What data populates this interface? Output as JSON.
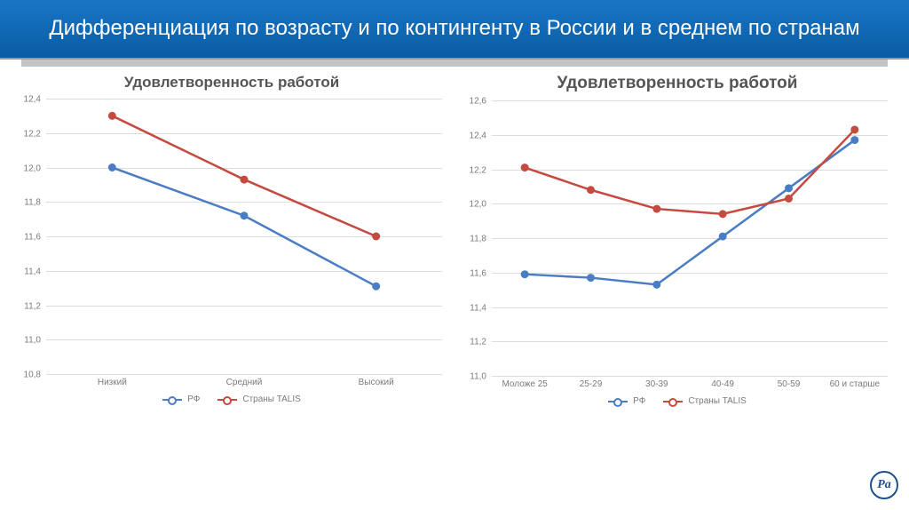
{
  "header": {
    "title": "Дифференциация по возрасту и по контингенту в России и в\nсреднем по странам"
  },
  "colors": {
    "series_rf": "#4a7dc4",
    "series_talis": "#c54a3f",
    "grid": "#dddddd",
    "axis_text": "#7a7a7a",
    "header_bg_top": "#1976c5",
    "header_bg_bottom": "#0a5ba3"
  },
  "chart_left": {
    "title": "Удовлетворенность работой",
    "title_fontsize": 17,
    "type": "line",
    "ylim": [
      10.8,
      12.4
    ],
    "ytick_step": 0.2,
    "yticks": [
      "10,8",
      "11,0",
      "11,2",
      "11,4",
      "11,6",
      "11,8",
      "12,0",
      "12,2",
      "12,4"
    ],
    "categories": [
      "Низкий",
      "Средний",
      "Высокий"
    ],
    "series": [
      {
        "name": "РФ",
        "color": "#4a7dc4",
        "values": [
          12.0,
          11.72,
          11.31
        ]
      },
      {
        "name": "Страны TALIS",
        "color": "#c54a3f",
        "values": [
          12.3,
          11.93,
          11.6
        ]
      }
    ],
    "line_width": 2.5,
    "marker_size": 4
  },
  "chart_right": {
    "title": "Удовлетворенность работой",
    "title_fontsize": 19,
    "type": "line",
    "ylim": [
      11.0,
      12.6
    ],
    "ytick_step": 0.2,
    "yticks": [
      "11,0",
      "11,2",
      "11,4",
      "11,6",
      "11,8",
      "12,0",
      "12,2",
      "12,4",
      "12,6"
    ],
    "categories": [
      "Моложе 25",
      "25-29",
      "30-39",
      "40-49",
      "50-59",
      "60 и старше"
    ],
    "series": [
      {
        "name": "РФ",
        "color": "#4a7dc4",
        "values": [
          11.59,
          11.57,
          11.53,
          11.81,
          12.09,
          12.37
        ]
      },
      {
        "name": "Страны TALIS",
        "color": "#c54a3f",
        "values": [
          12.21,
          12.08,
          11.97,
          11.94,
          12.03,
          12.43
        ]
      }
    ],
    "line_width": 2.5,
    "marker_size": 4
  },
  "legend": {
    "items": [
      {
        "label": "РФ",
        "color": "#4a7dc4"
      },
      {
        "label": "Страны TALIS",
        "color": "#c54a3f"
      }
    ]
  },
  "logo": {
    "text": "Pa"
  }
}
